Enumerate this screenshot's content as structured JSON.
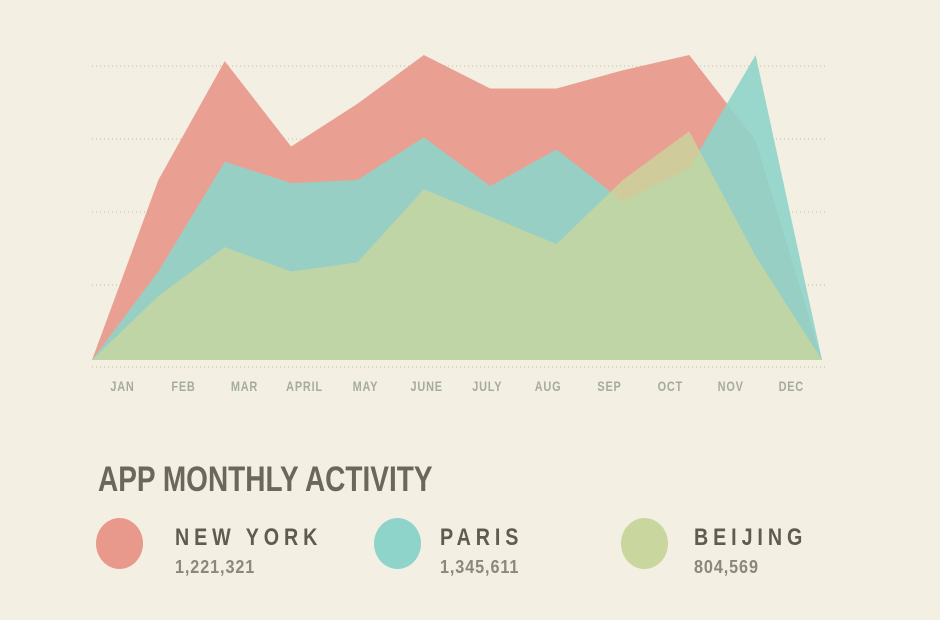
{
  "title": "APP MONTHLY ACTIVITY",
  "chart_data": {
    "type": "area",
    "title": "APP MONTHLY ACTIVITY",
    "categories": [
      "JAN",
      "FEB",
      "MAR",
      "APRIL",
      "MAY",
      "JUNE",
      "JULY",
      "AUG",
      "SEP",
      "OCT",
      "NOV",
      "DEC"
    ],
    "series": [
      {
        "name": "NEW YORK",
        "total": "1,221,321",
        "color": "#e8998b",
        "values": [
          0,
          59,
          98,
          70,
          84,
          100,
          89,
          89,
          95,
          100,
          72,
          0
        ]
      },
      {
        "name": "PARIS",
        "total": "1,345,611",
        "color": "#8fd4ca",
        "values": [
          0,
          29,
          65,
          58,
          59,
          73,
          57,
          69,
          52,
          63,
          100,
          0
        ]
      },
      {
        "name": "BEIJING",
        "total": "804,569",
        "color": "#c9d69e",
        "values": [
          0,
          21,
          37,
          29,
          32,
          56,
          47,
          38,
          59,
          75,
          34,
          0
        ]
      }
    ],
    "xlabel": "",
    "ylabel": "",
    "ylim": [
      0,
      100
    ],
    "grid": true,
    "gridline_color": "#dcd5c3",
    "background_color": "#f3efe3",
    "legend_position": "bottom"
  }
}
